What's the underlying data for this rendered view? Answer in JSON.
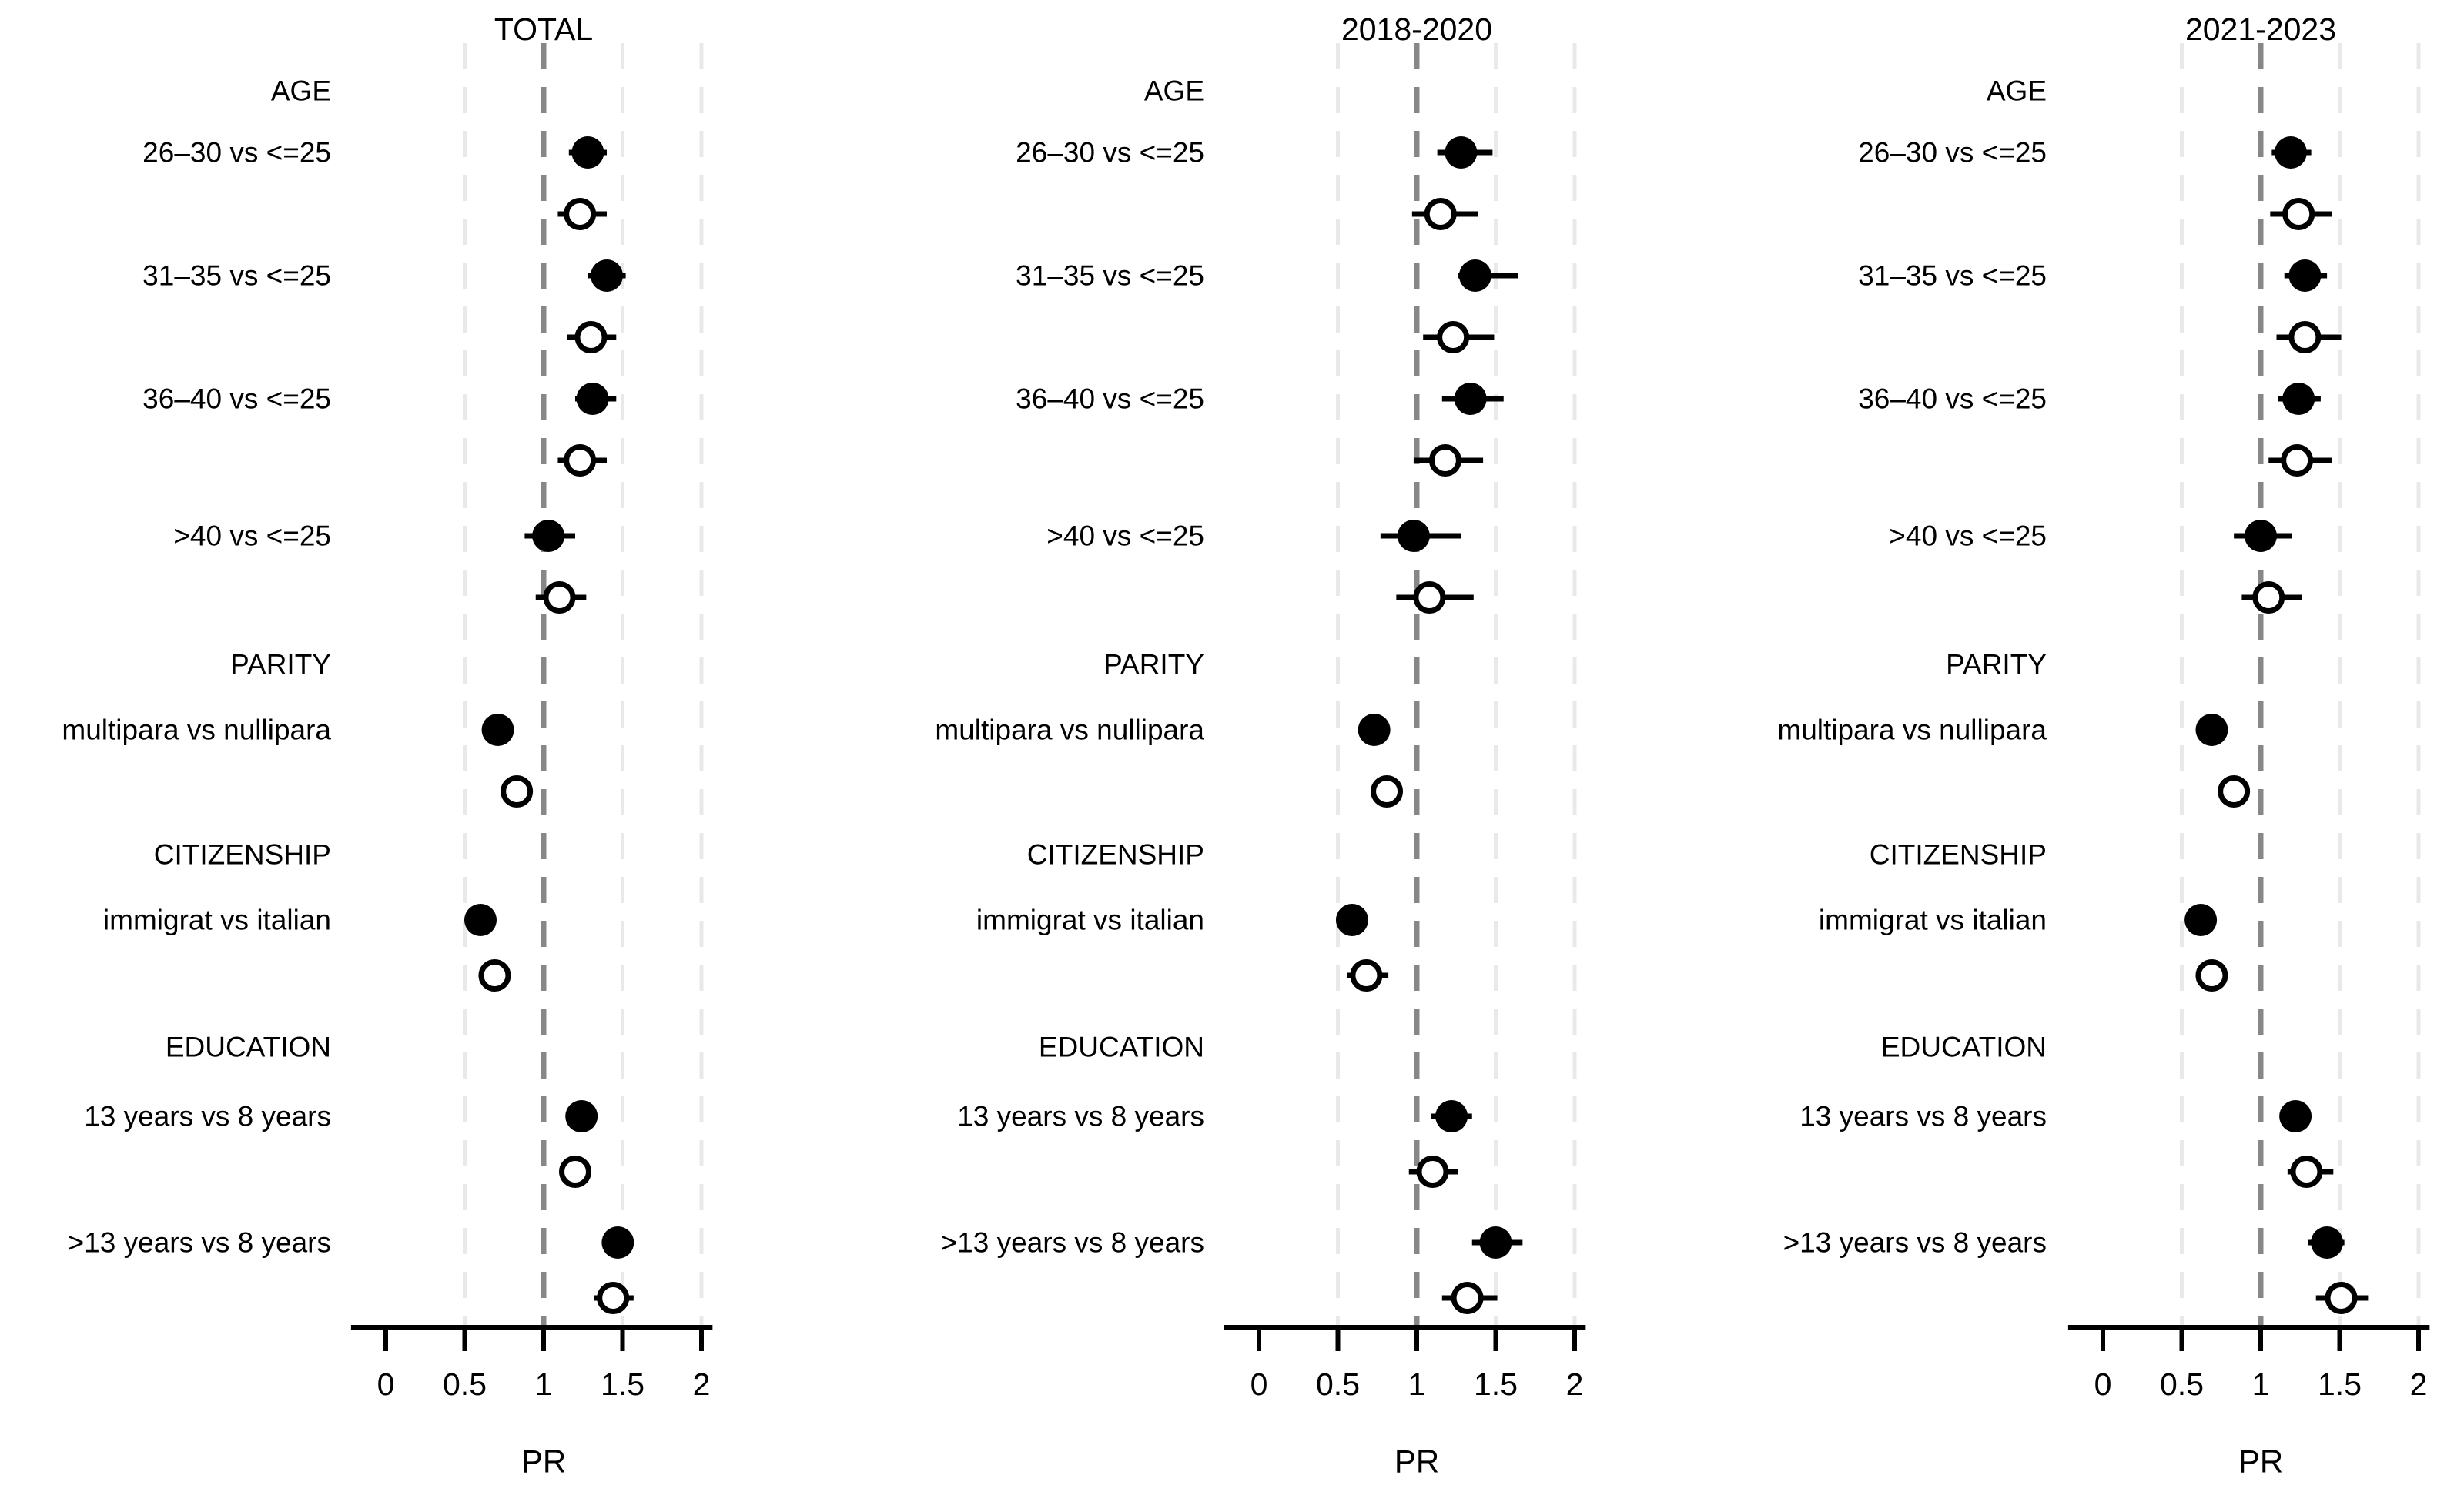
{
  "figure": {
    "background": "#ffffff",
    "colors": {
      "points": "#000000",
      "axis": "#000000",
      "grid_light": "#e9e9e9",
      "grid_reference": "#878787"
    }
  },
  "chart_data": {
    "type": "scatter",
    "subtype": "forest-plot",
    "xlabel": "PR",
    "xlim": [
      -0.22,
      2.07
    ],
    "x_ticks": [
      0,
      0.5,
      1,
      1.5,
      2
    ],
    "x_tick_labels": [
      "0",
      "0.5",
      "1",
      "1.5",
      "2"
    ],
    "gridlines": {
      "light": [
        0.5,
        1.5,
        2
      ],
      "reference": [
        1
      ]
    },
    "grid": "vertical-dashed",
    "legend_position": "none",
    "markers": {
      "filled": "filled-circle",
      "open": "open-circle"
    },
    "group_headers": [
      "AGE",
      "PARITY",
      "CITIZENSHIP",
      "EDUCATION"
    ],
    "row_labels": [
      "26–30 vs <=25",
      "31–35 vs <=25",
      "36–40 vs <=25",
      ">40 vs <=25",
      "multipara vs nullipara",
      "immigrat vs italian",
      "13 years vs 8 years",
      ">13 years vs 8 years"
    ],
    "panels": [
      {
        "title": "TOTAL",
        "groups": [
          {
            "header": "AGE",
            "rows": [
              {
                "label": "26–30 vs <=25",
                "filled": {
                  "pr": 1.28,
                  "ci": [
                    1.16,
                    1.4
                  ]
                },
                "open": {
                  "pr": 1.23,
                  "ci": [
                    1.09,
                    1.4
                  ]
                }
              },
              {
                "label": "31–35 vs <=25",
                "filled": {
                  "pr": 1.4,
                  "ci": [
                    1.28,
                    1.52
                  ]
                },
                "open": {
                  "pr": 1.3,
                  "ci": [
                    1.15,
                    1.46
                  ]
                }
              },
              {
                "label": "36–40 vs <=25",
                "filled": {
                  "pr": 1.31,
                  "ci": [
                    1.2,
                    1.46
                  ]
                },
                "open": {
                  "pr": 1.23,
                  "ci": [
                    1.09,
                    1.4
                  ]
                }
              },
              {
                "label": ">40 vs <=25",
                "filled": {
                  "pr": 1.03,
                  "ci": [
                    0.88,
                    1.2
                  ]
                },
                "open": {
                  "pr": 1.1,
                  "ci": [
                    0.95,
                    1.27
                  ]
                }
              }
            ]
          },
          {
            "header": "PARITY",
            "rows": [
              {
                "label": "multipara vs nullipara",
                "filled": {
                  "pr": 0.71,
                  "ci": [
                    0.68,
                    0.74
                  ]
                },
                "open": {
                  "pr": 0.83,
                  "ci": [
                    0.8,
                    0.86
                  ]
                }
              }
            ]
          },
          {
            "header": "CITIZENSHIP",
            "rows": [
              {
                "label": "immigrat vs italian",
                "filled": {
                  "pr": 0.6,
                  "ci": [
                    0.57,
                    0.63
                  ]
                },
                "open": {
                  "pr": 0.69,
                  "ci": [
                    0.66,
                    0.72
                  ]
                }
              }
            ]
          },
          {
            "header": "EDUCATION",
            "rows": [
              {
                "label": "13 years vs 8 years",
                "filled": {
                  "pr": 1.24,
                  "ci": [
                    1.19,
                    1.29
                  ]
                },
                "open": {
                  "pr": 1.2,
                  "ci": [
                    1.1,
                    1.3
                  ]
                }
              },
              {
                "label": ">13 years vs 8 years",
                "filled": {
                  "pr": 1.47,
                  "ci": [
                    1.38,
                    1.57
                  ]
                },
                "open": {
                  "pr": 1.44,
                  "ci": [
                    1.32,
                    1.57
                  ]
                }
              }
            ]
          }
        ]
      },
      {
        "title": "2018-2020",
        "groups": [
          {
            "header": "AGE",
            "rows": [
              {
                "label": "26–30 vs <=25",
                "filled": {
                  "pr": 1.28,
                  "ci": [
                    1.13,
                    1.48
                  ]
                },
                "open": {
                  "pr": 1.15,
                  "ci": [
                    0.97,
                    1.39
                  ]
                }
              },
              {
                "label": "31–35 vs <=25",
                "filled": {
                  "pr": 1.37,
                  "ci": [
                    1.26,
                    1.64
                  ]
                },
                "open": {
                  "pr": 1.23,
                  "ci": [
                    1.04,
                    1.49
                  ]
                }
              },
              {
                "label": "36–40 vs <=25",
                "filled": {
                  "pr": 1.34,
                  "ci": [
                    1.16,
                    1.55
                  ]
                },
                "open": {
                  "pr": 1.18,
                  "ci": [
                    0.98,
                    1.42
                  ]
                }
              },
              {
                "label": ">40 vs <=25",
                "filled": {
                  "pr": 0.98,
                  "ci": [
                    0.77,
                    1.28
                  ]
                },
                "open": {
                  "pr": 1.08,
                  "ci": [
                    0.87,
                    1.36
                  ]
                }
              }
            ]
          },
          {
            "header": "PARITY",
            "rows": [
              {
                "label": "multipara vs nullipara",
                "filled": {
                  "pr": 0.73,
                  "ci": [
                    0.7,
                    0.76
                  ]
                },
                "open": {
                  "pr": 0.81,
                  "ci": [
                    0.78,
                    0.84
                  ]
                }
              }
            ]
          },
          {
            "header": "CITIZENSHIP",
            "rows": [
              {
                "label": "immigrat vs italian",
                "filled": {
                  "pr": 0.59,
                  "ci": [
                    0.55,
                    0.63
                  ]
                },
                "open": {
                  "pr": 0.68,
                  "ci": [
                    0.56,
                    0.82
                  ]
                }
              }
            ]
          },
          {
            "header": "EDUCATION",
            "rows": [
              {
                "label": "13 years vs 8 years",
                "filled": {
                  "pr": 1.22,
                  "ci": [
                    1.09,
                    1.35
                  ]
                },
                "open": {
                  "pr": 1.1,
                  "ci": [
                    0.95,
                    1.26
                  ]
                }
              },
              {
                "label": ">13 years vs 8 years",
                "filled": {
                  "pr": 1.5,
                  "ci": [
                    1.35,
                    1.67
                  ]
                },
                "open": {
                  "pr": 1.32,
                  "ci": [
                    1.16,
                    1.51
                  ]
                }
              }
            ]
          }
        ]
      },
      {
        "title": "2021-2023",
        "groups": [
          {
            "header": "AGE",
            "rows": [
              {
                "label": "26–30 vs <=25",
                "filled": {
                  "pr": 1.19,
                  "ci": [
                    1.07,
                    1.32
                  ]
                },
                "open": {
                  "pr": 1.24,
                  "ci": [
                    1.06,
                    1.45
                  ]
                }
              },
              {
                "label": "31–35 vs <=25",
                "filled": {
                  "pr": 1.28,
                  "ci": [
                    1.15,
                    1.42
                  ]
                },
                "open": {
                  "pr": 1.28,
                  "ci": [
                    1.1,
                    1.51
                  ]
                }
              },
              {
                "label": "36–40 vs <=25",
                "filled": {
                  "pr": 1.24,
                  "ci": [
                    1.11,
                    1.38
                  ]
                },
                "open": {
                  "pr": 1.23,
                  "ci": [
                    1.05,
                    1.45
                  ]
                }
              },
              {
                "label": ">40 vs <=25",
                "filled": {
                  "pr": 1.0,
                  "ci": [
                    0.83,
                    1.2
                  ]
                },
                "open": {
                  "pr": 1.05,
                  "ci": [
                    0.88,
                    1.26
                  ]
                }
              }
            ]
          },
          {
            "header": "PARITY",
            "rows": [
              {
                "label": "multipara vs nullipara",
                "filled": {
                  "pr": 0.69,
                  "ci": [
                    0.66,
                    0.72
                  ]
                },
                "open": {
                  "pr": 0.83,
                  "ci": [
                    0.8,
                    0.86
                  ]
                }
              }
            ]
          },
          {
            "header": "CITIZENSHIP",
            "rows": [
              {
                "label": "immigrat vs italian",
                "filled": {
                  "pr": 0.62,
                  "ci": [
                    0.59,
                    0.65
                  ]
                },
                "open": {
                  "pr": 0.69,
                  "ci": [
                    0.66,
                    0.79
                  ]
                }
              }
            ]
          },
          {
            "header": "EDUCATION",
            "rows": [
              {
                "label": "13 years vs 8 years",
                "filled": {
                  "pr": 1.22,
                  "ci": [
                    1.18,
                    1.26
                  ]
                },
                "open": {
                  "pr": 1.29,
                  "ci": [
                    1.17,
                    1.46
                  ]
                }
              },
              {
                "label": ">13 years vs 8 years",
                "filled": {
                  "pr": 1.42,
                  "ci": [
                    1.3,
                    1.53
                  ]
                },
                "open": {
                  "pr": 1.51,
                  "ci": [
                    1.35,
                    1.68
                  ]
                }
              }
            ]
          }
        ]
      }
    ]
  }
}
